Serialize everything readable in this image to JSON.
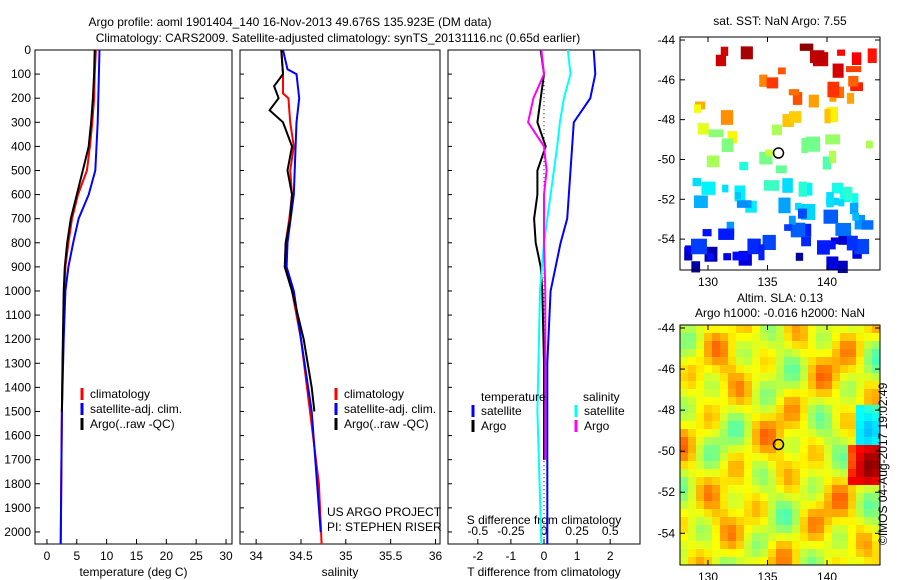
{
  "title_line1": "Argo profile: aoml 1901404_140 16-Nov-2013 49.676S 135.923E (DM data)",
  "title_line2": "Climatology: CARS2009. Satellite-adjusted climatology: synTS_20131116.nc (0.65d earlier)",
  "colors": {
    "climatology": "#ff0000",
    "satellite": "#0000ff",
    "argo": "#000000",
    "s_satellite": "#00ffff",
    "s_argo": "#ff00ff"
  },
  "chart_data": [
    {
      "type": "line",
      "name": "temperature",
      "xlabel": "temperature (deg C)",
      "ylabel": "",
      "xlim": [
        -2,
        31
      ],
      "ylim": [
        2050,
        0
      ],
      "xticks": [
        "0",
        "5",
        "10",
        "15",
        "20",
        "25",
        "30"
      ],
      "yticks": [
        "0",
        "100",
        "200",
        "300",
        "400",
        "500",
        "600",
        "700",
        "800",
        "900",
        "1000",
        "1100",
        "1200",
        "1300",
        "1400",
        "1500",
        "1600",
        "1700",
        "1800",
        "1900",
        "2000"
      ],
      "legend": [
        "climatology",
        "satellite-adj. clim.",
        "Argo(..raw -QC)"
      ],
      "series": [
        {
          "name": "climatology",
          "color": "#ff0000",
          "points": [
            [
              0,
              8.2
            ],
            [
              100,
              8.0
            ],
            [
              200,
              7.9
            ],
            [
              300,
              7.6
            ],
            [
              400,
              7.2
            ],
            [
              500,
              6.7
            ],
            [
              600,
              5.2
            ],
            [
              700,
              4.2
            ],
            [
              800,
              3.6
            ],
            [
              900,
              3.1
            ],
            [
              1000,
              2.9
            ],
            [
              1200,
              2.7
            ],
            [
              1500,
              2.5
            ],
            [
              2050,
              2.3
            ]
          ]
        },
        {
          "name": "satellite-adj. clim.",
          "color": "#0000ff",
          "points": [
            [
              0,
              8.8
            ],
            [
              100,
              8.7
            ],
            [
              300,
              8.5
            ],
            [
              500,
              8.1
            ],
            [
              600,
              7.0
            ],
            [
              700,
              5.3
            ],
            [
              800,
              4.4
            ],
            [
              900,
              3.6
            ],
            [
              1000,
              3.1
            ],
            [
              1200,
              2.8
            ],
            [
              1500,
              2.5
            ],
            [
              2050,
              2.3
            ]
          ]
        },
        {
          "name": "Argo(..raw -QC)",
          "color": "#000000",
          "points": [
            [
              0,
              8.0
            ],
            [
              100,
              7.9
            ],
            [
              200,
              7.7
            ],
            [
              300,
              7.4
            ],
            [
              400,
              7.0
            ],
            [
              500,
              6.0
            ],
            [
              600,
              5.0
            ],
            [
              700,
              4.0
            ],
            [
              800,
              3.4
            ],
            [
              900,
              3.0
            ],
            [
              1000,
              2.8
            ],
            [
              1300,
              2.6
            ],
            [
              1500,
              2.5
            ]
          ]
        }
      ]
    },
    {
      "type": "line",
      "name": "salinity",
      "xlabel": "salinity",
      "xlim": [
        33.82,
        36.05
      ],
      "ylim": [
        2050,
        0
      ],
      "xticks": [
        "34",
        "34.5",
        "35",
        "35.5",
        "36"
      ],
      "legend": [
        "climatology",
        "satellite-adj. clim.",
        "Argo(..raw -QC)"
      ],
      "annotation": [
        "US ARGO PROJECT",
        "PI: STEPHEN RISER"
      ],
      "series": [
        {
          "name": "climatology",
          "color": "#ff0000",
          "points": [
            [
              0,
              34.28
            ],
            [
              100,
              34.3
            ],
            [
              180,
              34.3
            ],
            [
              200,
              34.36
            ],
            [
              300,
              34.38
            ],
            [
              400,
              34.42
            ],
            [
              500,
              34.38
            ],
            [
              600,
              34.4
            ],
            [
              700,
              34.37
            ],
            [
              800,
              34.33
            ],
            [
              900,
              34.32
            ],
            [
              1000,
              34.4
            ],
            [
              1200,
              34.5
            ],
            [
              1500,
              34.6
            ],
            [
              1800,
              34.7
            ],
            [
              2050,
              34.73
            ]
          ]
        },
        {
          "name": "satellite-adj. clim.",
          "color": "#0000ff",
          "points": [
            [
              0,
              34.3
            ],
            [
              80,
              34.35
            ],
            [
              100,
              34.45
            ],
            [
              200,
              34.48
            ],
            [
              300,
              34.45
            ],
            [
              400,
              34.44
            ],
            [
              600,
              34.42
            ],
            [
              800,
              34.35
            ],
            [
              900,
              34.34
            ],
            [
              1000,
              34.42
            ],
            [
              1200,
              34.5
            ],
            [
              1500,
              34.62
            ],
            [
              2000,
              34.72
            ]
          ]
        },
        {
          "name": "Argo(..raw -QC)",
          "color": "#000000",
          "points": [
            [
              0,
              34.28
            ],
            [
              100,
              34.3
            ],
            [
              150,
              34.2
            ],
            [
              200,
              34.25
            ],
            [
              250,
              34.15
            ],
            [
              300,
              34.3
            ],
            [
              350,
              34.35
            ],
            [
              400,
              34.4
            ],
            [
              500,
              34.35
            ],
            [
              600,
              34.4
            ],
            [
              700,
              34.38
            ],
            [
              800,
              34.33
            ],
            [
              900,
              34.32
            ],
            [
              1000,
              34.4
            ],
            [
              1200,
              34.53
            ],
            [
              1400,
              34.62
            ],
            [
              1500,
              34.65
            ]
          ]
        }
      ]
    },
    {
      "type": "line",
      "name": "difference",
      "xlabel": "T difference from climatology",
      "x2label": "S difference from climatology",
      "xlim": [
        -2.9,
        2.9
      ],
      "ylim": [
        2050,
        0
      ],
      "xticks": [
        "-2",
        "-1",
        "0",
        "1",
        "2"
      ],
      "x2ticks": [
        "-0.5",
        "-0.25",
        "0",
        "0.25",
        "0.5"
      ],
      "legend_t": {
        "title": "temperature",
        "items": [
          "satellite",
          "Argo"
        ]
      },
      "legend_s": {
        "title": "salinity",
        "items": [
          "satellite",
          "Argo"
        ]
      },
      "series": [
        {
          "name": "T satellite",
          "color": "#0000ff",
          "scale": 1,
          "points": [
            [
              0,
              1.5
            ],
            [
              100,
              1.55
            ],
            [
              200,
              1.4
            ],
            [
              300,
              0.9
            ],
            [
              500,
              0.8
            ],
            [
              700,
              0.7
            ],
            [
              800,
              0.5
            ],
            [
              1000,
              0.2
            ],
            [
              1300,
              0.1
            ],
            [
              2050,
              0.1
            ]
          ]
        },
        {
          "name": "T Argo",
          "color": "#000000",
          "scale": 1,
          "points": [
            [
              0,
              -0.1
            ],
            [
              100,
              0
            ],
            [
              200,
              -0.1
            ],
            [
              300,
              -0.2
            ],
            [
              400,
              0.05
            ],
            [
              500,
              -0.2
            ],
            [
              600,
              -0.2
            ],
            [
              700,
              -0.3
            ],
            [
              800,
              -0.25
            ],
            [
              900,
              -0.1
            ],
            [
              1000,
              -0.05
            ],
            [
              1300,
              0
            ],
            [
              1700,
              0
            ]
          ]
        },
        {
          "name": "S satellite",
          "color": "#00ffff",
          "scale": 4,
          "points": [
            [
              0,
              0.18
            ],
            [
              100,
              0.2
            ],
            [
              200,
              0.15
            ],
            [
              300,
              0.12
            ],
            [
              400,
              0.1
            ],
            [
              600,
              0.05
            ],
            [
              800,
              0.0
            ],
            [
              1000,
              -0.03
            ],
            [
              1500,
              -0.05
            ],
            [
              2050,
              -0.02
            ]
          ]
        },
        {
          "name": "S Argo",
          "color": "#ff00ff",
          "scale": 4,
          "points": [
            [
              0,
              -0.02
            ],
            [
              100,
              0
            ],
            [
              200,
              -0.08
            ],
            [
              300,
              -0.12
            ],
            [
              400,
              0
            ],
            [
              500,
              0.02
            ],
            [
              600,
              0
            ],
            [
              800,
              0
            ],
            [
              1000,
              0.01
            ],
            [
              1700,
              0.01
            ]
          ]
        }
      ]
    },
    {
      "type": "heatmap",
      "name": "sst-map",
      "title": "sat. SST: NaN Argo: 7.55",
      "xticks": [
        "130",
        "135",
        "140"
      ],
      "yticks": [
        "-44",
        "-46",
        "-48",
        "-50",
        "-52",
        "-54"
      ],
      "float_position": [
        135.923,
        -49.676
      ]
    },
    {
      "type": "heatmap",
      "name": "sla-map",
      "title_line1": "Altim. SLA: 0.13",
      "title_line2": "Argo h1000: -0.016 h2000: NaN",
      "xticks": [
        "130",
        "135",
        "140"
      ],
      "yticks": [
        "-44",
        "-46",
        "-48",
        "-50",
        "-52",
        "-54"
      ],
      "float_position": [
        135.923,
        -49.676
      ]
    }
  ],
  "credit": "©IMOS 04-Aug-2017 19:02:49"
}
